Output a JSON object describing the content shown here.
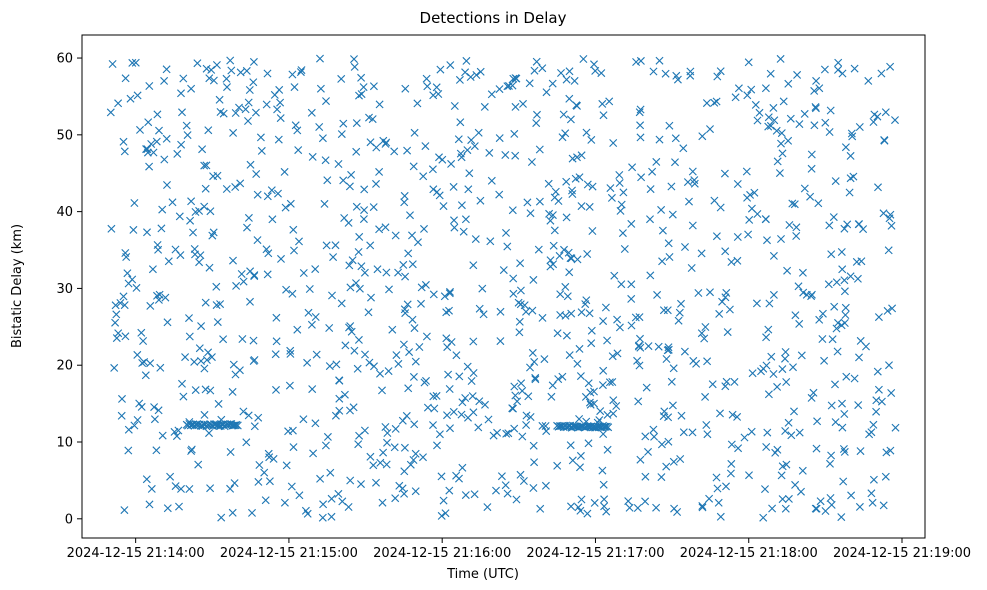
{
  "chart_data": {
    "type": "scatter",
    "title": "Detections in Delay",
    "xlabel": "Time (UTC)",
    "ylabel": "Bistatic Delay (km)",
    "x_start": "2024-12-15 21:13:50",
    "x_end": "2024-12-15 21:18:58",
    "xlim": [
      "2024-12-15 21:13:39",
      "2024-12-15 21:19:09"
    ],
    "ylim": [
      -2.5,
      63
    ],
    "x_tick_labels": [
      "2024-12-15 21:14:00",
      "2024-12-15 21:15:00",
      "2024-12-15 21:16:00",
      "2024-12-15 21:17:00",
      "2024-12-15 21:18:00",
      "2024-12-15 21:19:00"
    ],
    "y_ticks": [
      "0",
      "10",
      "20",
      "30",
      "40",
      "50",
      "60"
    ],
    "grid": false,
    "marker": "x",
    "color": "#1f77b4",
    "point_count": 1150,
    "y_range": [
      0,
      60
    ],
    "clusters": [
      {
        "time_start": "2024-12-15 21:14:20",
        "time_end": "2024-12-15 21:14:40",
        "delay": 12.2
      },
      {
        "time_start": "2024-12-15 21:16:45",
        "time_end": "2024-12-15 21:17:05",
        "delay": 12.0
      }
    ]
  }
}
